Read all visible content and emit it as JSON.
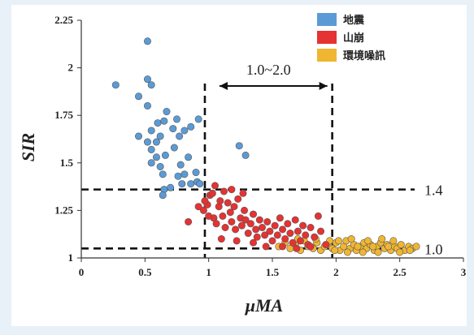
{
  "chart_data": {
    "type": "scatter",
    "xlabel": "μMA",
    "ylabel": "SIR",
    "xlim": [
      0,
      3
    ],
    "ylim": [
      1,
      2.25
    ],
    "x_ticks": [
      "0",
      "0.5",
      "1",
      "1.5",
      "2",
      "2.5",
      "3"
    ],
    "y_ticks": [
      "1",
      "1.25",
      "1.5",
      "1.75",
      "2",
      "2.25"
    ],
    "legend_position": "top-right",
    "series": [
      {
        "name": "地震",
        "color": "#5b9bd5",
        "points": [
          [
            0.27,
            1.91
          ],
          [
            0.52,
            2.14
          ],
          [
            0.52,
            1.94
          ],
          [
            0.55,
            1.91
          ],
          [
            0.45,
            1.85
          ],
          [
            0.52,
            1.8
          ],
          [
            0.45,
            1.64
          ],
          [
            0.55,
            1.67
          ],
          [
            0.52,
            1.61
          ],
          [
            0.59,
            1.61
          ],
          [
            0.55,
            1.57
          ],
          [
            0.59,
            1.53
          ],
          [
            0.55,
            1.5
          ],
          [
            0.62,
            1.48
          ],
          [
            0.64,
            1.44
          ],
          [
            0.66,
            1.54
          ],
          [
            0.67,
            1.77
          ],
          [
            0.65,
            1.72
          ],
          [
            0.72,
            1.68
          ],
          [
            0.75,
            1.73
          ],
          [
            0.77,
            1.64
          ],
          [
            0.81,
            1.67
          ],
          [
            0.86,
            1.69
          ],
          [
            0.92,
            1.73
          ],
          [
            0.73,
            1.58
          ],
          [
            0.78,
            1.49
          ],
          [
            0.76,
            1.43
          ],
          [
            0.79,
            1.39
          ],
          [
            0.81,
            1.44
          ],
          [
            0.7,
            1.37
          ],
          [
            0.65,
            1.36
          ],
          [
            0.64,
            1.33
          ],
          [
            0.91,
            1.4
          ],
          [
            0.86,
            1.39
          ],
          [
            0.93,
            1.39
          ],
          [
            0.9,
            1.45
          ],
          [
            0.84,
            1.53
          ],
          [
            0.6,
            1.71
          ],
          [
            0.62,
            1.64
          ],
          [
            1.24,
            1.59
          ],
          [
            1.29,
            1.54
          ]
        ]
      },
      {
        "name": "山崩",
        "color": "#e53232",
        "points": [
          [
            0.84,
            1.19
          ],
          [
            0.92,
            1.27
          ],
          [
            0.96,
            1.25
          ],
          [
            0.99,
            1.28
          ],
          [
            1.01,
            1.33
          ],
          [
            1.04,
            1.21
          ],
          [
            1.06,
            1.18
          ],
          [
            1.08,
            1.27
          ],
          [
            1.09,
            1.3
          ],
          [
            1.11,
            1.22
          ],
          [
            1.13,
            1.16
          ],
          [
            1.15,
            1.29
          ],
          [
            1.17,
            1.24
          ],
          [
            1.18,
            1.19
          ],
          [
            1.2,
            1.27
          ],
          [
            1.21,
            1.15
          ],
          [
            1.23,
            1.31
          ],
          [
            1.25,
            1.21
          ],
          [
            1.26,
            1.17
          ],
          [
            1.28,
            1.25
          ],
          [
            1.29,
            1.2
          ],
          [
            1.31,
            1.13
          ],
          [
            1.33,
            1.18
          ],
          [
            1.35,
            1.23
          ],
          [
            1.37,
            1.15
          ],
          [
            1.38,
            1.11
          ],
          [
            1.4,
            1.2
          ],
          [
            1.42,
            1.16
          ],
          [
            1.44,
            1.12
          ],
          [
            1.46,
            1.19
          ],
          [
            1.48,
            1.14
          ],
          [
            1.5,
            1.09
          ],
          [
            1.52,
            1.17
          ],
          [
            1.54,
            1.12
          ],
          [
            1.56,
            1.21
          ],
          [
            1.58,
            1.15
          ],
          [
            1.6,
            1.1
          ],
          [
            1.62,
            1.18
          ],
          [
            1.64,
            1.13
          ],
          [
            1.66,
            1.08
          ],
          [
            1.68,
            1.2
          ],
          [
            1.7,
            1.14
          ],
          [
            1.72,
            1.09
          ],
          [
            1.74,
            1.17
          ],
          [
            1.76,
            1.12
          ],
          [
            1.78,
            1.07
          ],
          [
            1.8,
            1.16
          ],
          [
            1.83,
            1.11
          ],
          [
            1.86,
            1.22
          ],
          [
            1.88,
            1.14
          ],
          [
            1.05,
            1.38
          ],
          [
            1.03,
            1.34
          ],
          [
            1.12,
            1.35
          ],
          [
            0.97,
            1.3
          ],
          [
            1.0,
            1.22
          ],
          [
            1.1,
            1.1
          ],
          [
            1.22,
            1.09
          ],
          [
            1.35,
            1.08
          ],
          [
            1.18,
            1.36
          ],
          [
            1.27,
            1.34
          ],
          [
            1.45,
            1.06
          ],
          [
            1.58,
            1.06
          ],
          [
            1.69,
            1.05
          ],
          [
            1.8,
            1.06
          ],
          [
            1.92,
            1.07
          ]
        ]
      },
      {
        "name": "環境噪訊",
        "color": "#f0b632",
        "points": [
          [
            1.55,
            1.06
          ],
          [
            1.6,
            1.08
          ],
          [
            1.64,
            1.05
          ],
          [
            1.68,
            1.07
          ],
          [
            1.72,
            1.04
          ],
          [
            1.75,
            1.09
          ],
          [
            1.78,
            1.06
          ],
          [
            1.82,
            1.05
          ],
          [
            1.85,
            1.08
          ],
          [
            1.88,
            1.04
          ],
          [
            1.91,
            1.06
          ],
          [
            1.94,
            1.07
          ],
          [
            1.97,
            1.05
          ],
          [
            2.0,
            1.08
          ],
          [
            2.03,
            1.04
          ],
          [
            2.06,
            1.06
          ],
          [
            2.08,
            1.09
          ],
          [
            2.11,
            1.05
          ],
          [
            2.14,
            1.07
          ],
          [
            2.16,
            1.04
          ],
          [
            2.19,
            1.06
          ],
          [
            2.22,
            1.08
          ],
          [
            2.24,
            1.05
          ],
          [
            2.27,
            1.07
          ],
          [
            2.3,
            1.04
          ],
          [
            2.32,
            1.06
          ],
          [
            2.35,
            1.08
          ],
          [
            2.38,
            1.05
          ],
          [
            2.4,
            1.07
          ],
          [
            2.43,
            1.04
          ],
          [
            2.46,
            1.06
          ],
          [
            2.48,
            1.05
          ],
          [
            2.51,
            1.07
          ],
          [
            2.54,
            1.04
          ],
          [
            2.57,
            1.06
          ],
          [
            2.6,
            1.05
          ],
          [
            2.63,
            1.06
          ],
          [
            2.02,
            1.09
          ],
          [
            2.12,
            1.1
          ],
          [
            2.25,
            1.09
          ],
          [
            2.36,
            1.1
          ],
          [
            2.45,
            1.09
          ],
          [
            1.99,
            1.04
          ],
          [
            2.09,
            1.03
          ],
          [
            2.21,
            1.03
          ],
          [
            2.33,
            1.03
          ],
          [
            2.5,
            1.03
          ],
          [
            2.58,
            1.04
          ],
          [
            1.7,
            1.1
          ],
          [
            1.84,
            1.1
          ],
          [
            1.95,
            1.09
          ],
          [
            2.17,
            1.06
          ],
          [
            2.29,
            1.06
          ],
          [
            2.41,
            1.06
          ]
        ]
      }
    ],
    "reference_lines": [
      {
        "orientation": "horizontal",
        "value": 1.36,
        "label": "1.4"
      },
      {
        "orientation": "horizontal",
        "value": 1.05,
        "label": "1.0"
      },
      {
        "orientation": "vertical",
        "value": 0.97
      },
      {
        "orientation": "vertical",
        "value": 1.97
      }
    ],
    "range_annotation": {
      "label": "1.0~2.0",
      "from": 0.97,
      "to": 1.97
    }
  }
}
